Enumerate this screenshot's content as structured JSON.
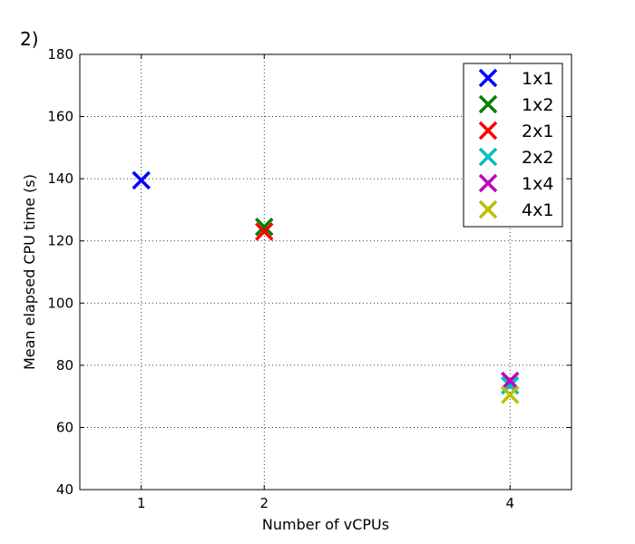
{
  "panel_label": "2)",
  "chart_data": {
    "type": "scatter",
    "title": "",
    "xlabel": "Number of vCPUs",
    "ylabel": "Mean elapsed CPU time (s)",
    "xlim": [
      0.5,
      4.5
    ],
    "ylim": [
      40,
      180
    ],
    "xticks": [
      1,
      2,
      4
    ],
    "xtick_labels": [
      "1",
      "2",
      "4"
    ],
    "yticks": [
      40,
      60,
      80,
      100,
      120,
      140,
      160,
      180
    ],
    "ytick_labels": [
      "40",
      "60",
      "80",
      "100",
      "120",
      "140",
      "160",
      "180"
    ],
    "grid": true,
    "marker": "x",
    "legend_position": "top-right",
    "series": [
      {
        "name": "1x1",
        "color": "#0000ff",
        "points": [
          {
            "x": 1,
            "y": 139.5
          }
        ]
      },
      {
        "name": "1x2",
        "color": "#008000",
        "points": [
          {
            "x": 2,
            "y": 124.5
          }
        ]
      },
      {
        "name": "2x1",
        "color": "#ff0000",
        "points": [
          {
            "x": 2,
            "y": 123
          }
        ]
      },
      {
        "name": "2x2",
        "color": "#00bfbf",
        "points": [
          {
            "x": 4,
            "y": 73.5
          }
        ]
      },
      {
        "name": "1x4",
        "color": "#bf00bf",
        "points": [
          {
            "x": 4,
            "y": 75
          }
        ]
      },
      {
        "name": "4x1",
        "color": "#bfbf00",
        "points": [
          {
            "x": 4,
            "y": 70.5
          }
        ]
      }
    ]
  }
}
